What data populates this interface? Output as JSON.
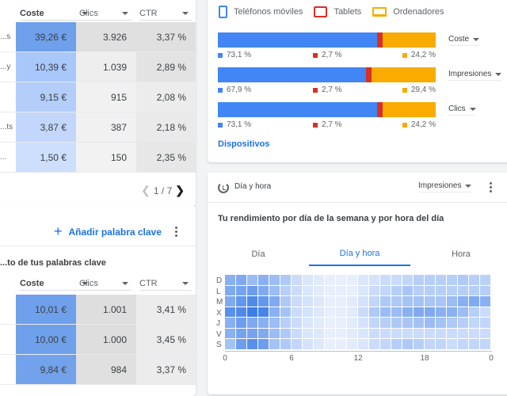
{
  "campaigns_table": {
    "columns": [
      {
        "label": "Coste",
        "bold": true
      },
      {
        "label": "Clics",
        "bold": false
      },
      {
        "label": "CTR",
        "bold": false
      }
    ],
    "rows": [
      {
        "label": "...s",
        "coste": "39,26 €",
        "clics": "3.926",
        "ctr": "3,37 %"
      },
      {
        "label": "...y",
        "coste": "10,39 €",
        "clics": "1.039",
        "ctr": "2,89 %"
      },
      {
        "label": "",
        "coste": "9,15 €",
        "clics": "915",
        "ctr": "2,08 %"
      },
      {
        "label": "...ts",
        "coste": "3,87 €",
        "clics": "387",
        "ctr": "2,18 %"
      },
      {
        "label": "...",
        "coste": "1,50 €",
        "clics": "150",
        "ctr": "2,35 %"
      }
    ],
    "pagination": {
      "text": "1 / 7",
      "prev_icon": "chevron-left",
      "next_icon": "chevron-right"
    }
  },
  "keywords_card": {
    "add_button": "Añadir palabra clave",
    "add_icon": "plus-icon",
    "menu_icon": "more-vert-icon",
    "subtitle": "...to de tus palabras clave",
    "columns": [
      {
        "label": "Coste",
        "bold": true
      },
      {
        "label": "Clics",
        "bold": false
      },
      {
        "label": "CTR",
        "bold": false
      }
    ],
    "rows": [
      {
        "coste": "10,01 €",
        "clics": "1.001",
        "ctr": "3,41 %"
      },
      {
        "coste": "10,00 €",
        "clics": "1.000",
        "ctr": "3,45 %"
      },
      {
        "coste": "9,84 €",
        "clics": "984",
        "ctr": "3,37 %"
      }
    ]
  },
  "devices": {
    "legend": [
      {
        "label": "Teléfonos móviles",
        "icon": "phone-icon",
        "color": "#4285f4"
      },
      {
        "label": "Tablets",
        "icon": "tablet-icon",
        "color": "#d93025"
      },
      {
        "label": "Ordenadores",
        "icon": "laptop-icon",
        "color": "#f9ab00"
      }
    ],
    "bars": [
      {
        "metric": "Coste",
        "mobile": "73,1 %",
        "tablet": "2,7 %",
        "desktop": "24,2 %",
        "values": [
          73.1,
          2.7,
          24.2
        ]
      },
      {
        "metric": "Impresiones",
        "mobile": "67,9 %",
        "tablet": "2,7 %",
        "desktop": "29,4 %",
        "values": [
          67.9,
          2.7,
          29.4
        ]
      },
      {
        "metric": "Clics",
        "mobile": "73,1 %",
        "tablet": "2,7 %",
        "desktop": "24,2 %",
        "values": [
          73.1,
          2.7,
          24.2
        ]
      }
    ],
    "link": "Dispositivos"
  },
  "day_hour": {
    "title": "Día y hora",
    "metric": "Impresiones",
    "subtitle": "Tu rendimiento por día de la semana y por hora del día",
    "tabs": [
      {
        "label": "Día",
        "active": false
      },
      {
        "label": "Día y hora",
        "active": true
      },
      {
        "label": "Hora",
        "active": false
      }
    ],
    "days": [
      "D",
      "L",
      "M",
      "X",
      "J",
      "V",
      "S"
    ],
    "x_ticks": [
      "0",
      "6",
      "12",
      "18",
      "0"
    ],
    "heatmap": [
      [
        0.55,
        0.6,
        0.45,
        0.55,
        0.45,
        0.35,
        0.2,
        0.12,
        0.08,
        0.05,
        0.05,
        0.05,
        0.12,
        0.15,
        0.2,
        0.2,
        0.25,
        0.3,
        0.3,
        0.3,
        0.3,
        0.35,
        0.3,
        0.28
      ],
      [
        0.6,
        0.65,
        0.7,
        0.6,
        0.45,
        0.3,
        0.2,
        0.12,
        0.08,
        0.05,
        0.05,
        0.05,
        0.12,
        0.2,
        0.25,
        0.3,
        0.38,
        0.3,
        0.3,
        0.3,
        0.3,
        0.3,
        0.3,
        0.3
      ],
      [
        0.6,
        0.75,
        0.85,
        0.75,
        0.6,
        0.35,
        0.2,
        0.15,
        0.1,
        0.05,
        0.05,
        0.08,
        0.15,
        0.25,
        0.35,
        0.35,
        0.4,
        0.4,
        0.38,
        0.38,
        0.45,
        0.55,
        0.6,
        0.55
      ],
      [
        0.8,
        0.85,
        0.95,
        0.9,
        0.55,
        0.4,
        0.2,
        0.15,
        0.1,
        0.05,
        0.05,
        0.08,
        0.2,
        0.35,
        0.45,
        0.45,
        0.55,
        0.6,
        0.6,
        0.55,
        0.55,
        0.45,
        0.3,
        0.2
      ],
      [
        0.55,
        0.7,
        0.6,
        0.55,
        0.45,
        0.3,
        0.2,
        0.12,
        0.08,
        0.05,
        0.05,
        0.08,
        0.15,
        0.25,
        0.3,
        0.35,
        0.38,
        0.4,
        0.45,
        0.4,
        0.35,
        0.3,
        0.25,
        0.25
      ],
      [
        0.55,
        0.65,
        0.65,
        0.6,
        0.45,
        0.35,
        0.2,
        0.12,
        0.1,
        0.05,
        0.05,
        0.08,
        0.12,
        0.2,
        0.2,
        0.2,
        0.2,
        0.2,
        0.2,
        0.2,
        0.2,
        0.2,
        0.2,
        0.2
      ],
      [
        0.4,
        0.7,
        0.8,
        0.7,
        0.4,
        0.35,
        0.25,
        0.15,
        0.1,
        0.05,
        0.05,
        0.08,
        0.12,
        0.2,
        0.25,
        0.3,
        0.35,
        0.3,
        0.25,
        0.25,
        0.2,
        0.25,
        0.25,
        0.25
      ]
    ]
  }
}
